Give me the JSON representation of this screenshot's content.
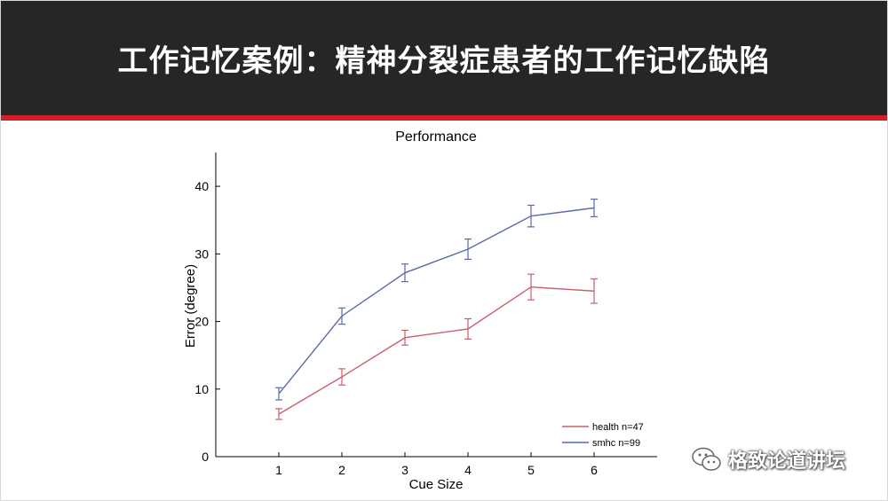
{
  "slide": {
    "title": "工作记忆案例：精神分裂症患者的工作记忆缺陷",
    "watermark": "格致论道讲坛"
  },
  "colors": {
    "header_bg": "#262626",
    "accent": "#d61f26",
    "health": "#c8606a",
    "smhc": "#5a6aa8"
  },
  "chart_data": {
    "type": "line",
    "title": "Performance",
    "xlabel": "Cue Size",
    "ylabel": "Error (degree)",
    "x": [
      1,
      2,
      3,
      4,
      5,
      6
    ],
    "xlim": [
      0,
      7
    ],
    "ylim": [
      0,
      45
    ],
    "yticks": [
      0,
      10,
      20,
      30,
      40
    ],
    "legend_position": "bottom-right",
    "series": [
      {
        "name": "health n=47",
        "color": "#c8606a",
        "values": [
          6.3,
          11.8,
          17.6,
          18.9,
          25.1,
          24.5
        ],
        "errors": [
          0.8,
          1.2,
          1.1,
          1.5,
          1.9,
          1.8
        ]
      },
      {
        "name": "smhc n=99",
        "color": "#5a6aa8",
        "values": [
          9.3,
          20.8,
          27.2,
          30.7,
          35.6,
          36.8
        ],
        "errors": [
          0.9,
          1.2,
          1.3,
          1.5,
          1.6,
          1.3
        ]
      }
    ]
  }
}
